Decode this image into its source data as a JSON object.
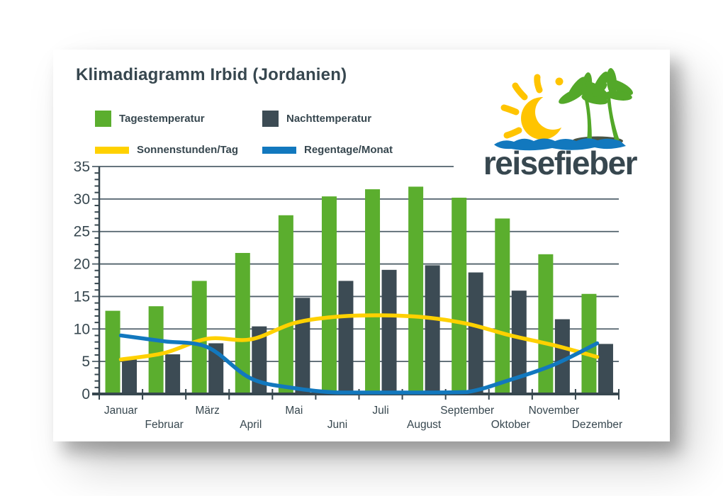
{
  "card": {
    "title": "Klimadiagramm Irbid (Jordanien)"
  },
  "legend": [
    {
      "label": "Tagestemperatur",
      "swatch": "square",
      "color": "#5BAE2E"
    },
    {
      "label": "Nachttemperatur",
      "swatch": "square",
      "color": "#3C4B54"
    },
    {
      "label": "Sonnenstunden/Tag",
      "swatch": "line",
      "color": "#FFD100"
    },
    {
      "label": "Regentage/Monat",
      "swatch": "line",
      "color": "#1278BE"
    }
  ],
  "logo": {
    "text": "reisefieber",
    "colors": {
      "sun": "#FFC400",
      "palm": "#53A829",
      "water": "#1278BE",
      "ground": "#4A5443",
      "text": "#37474F"
    }
  },
  "chart_data": {
    "type": "bar+line",
    "categories": [
      "Januar",
      "Februar",
      "März",
      "April",
      "Mai",
      "Juni",
      "Juli",
      "August",
      "September",
      "Oktober",
      "November",
      "Dezember"
    ],
    "series": [
      {
        "name": "Tagestemperatur",
        "type": "bar",
        "color": "#5BAE2E",
        "values": [
          12.8,
          13.5,
          17.4,
          21.7,
          27.5,
          30.4,
          31.5,
          31.9,
          30.2,
          27.0,
          21.5,
          15.4
        ]
      },
      {
        "name": "Nachttemperatur",
        "type": "bar",
        "color": "#3C4B54",
        "values": [
          5.3,
          6.1,
          7.8,
          10.4,
          14.8,
          17.4,
          19.1,
          19.8,
          18.7,
          15.9,
          11.5,
          7.7
        ]
      },
      {
        "name": "Sonnenstunden/Tag",
        "type": "line",
        "color": "#FFD100",
        "values": [
          5.3,
          6.3,
          8.5,
          8.4,
          10.9,
          11.9,
          12.1,
          11.8,
          10.8,
          9.0,
          7.5,
          5.7
        ]
      },
      {
        "name": "Regentage/Monat",
        "type": "line",
        "color": "#1278BE",
        "values": [
          9.0,
          8.1,
          7.2,
          2.4,
          0.9,
          0.1,
          0.0,
          0.0,
          0.3,
          2.2,
          4.5,
          7.8
        ]
      }
    ],
    "ylim": [
      0,
      35
    ],
    "yticks": [
      0,
      5,
      10,
      15,
      20,
      25,
      30,
      35
    ],
    "minor_tick_step": 1,
    "grid": true,
    "legend_position": "top-left",
    "axis_color": "#37474F",
    "grid_color": "#51616B"
  }
}
